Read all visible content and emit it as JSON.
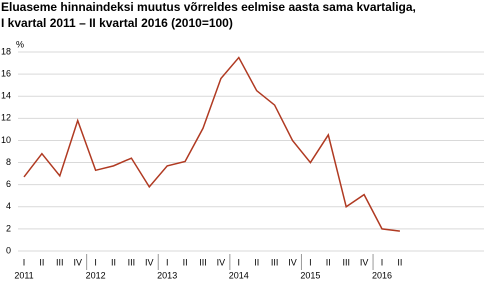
{
  "chart_data": {
    "type": "line",
    "title": "Eluaseme hinnaindeksi muutus võrreldes eelmise aasta sama kvartaliga,",
    "subtitle": "I kvartal 2011 – II kvartal 2016 (2010=100)",
    "y_label": "%",
    "categories": [
      "I",
      "II",
      "III",
      "IV",
      "I",
      "II",
      "III",
      "IV",
      "I",
      "II",
      "III",
      "IV",
      "I",
      "II",
      "III",
      "IV",
      "I",
      "II",
      "III",
      "IV",
      "I",
      "II"
    ],
    "years": [
      "2011",
      "2012",
      "2013",
      "2014",
      "2015",
      "2016"
    ],
    "series": [
      {
        "color": "#b03a22",
        "values": [
          6.7,
          8.8,
          6.8,
          11.8,
          7.3,
          7.7,
          8.4,
          5.8,
          7.7,
          8.1,
          11.1,
          15.6,
          17.5,
          14.5,
          13.2,
          10.0,
          8.0,
          10.5,
          4.0,
          5.1,
          2.0,
          1.8
        ]
      }
    ],
    "ylim": [
      0,
      18
    ],
    "yticks": [
      0,
      2,
      4,
      6,
      8,
      10,
      12,
      14,
      16,
      18
    ],
    "grid": true
  }
}
